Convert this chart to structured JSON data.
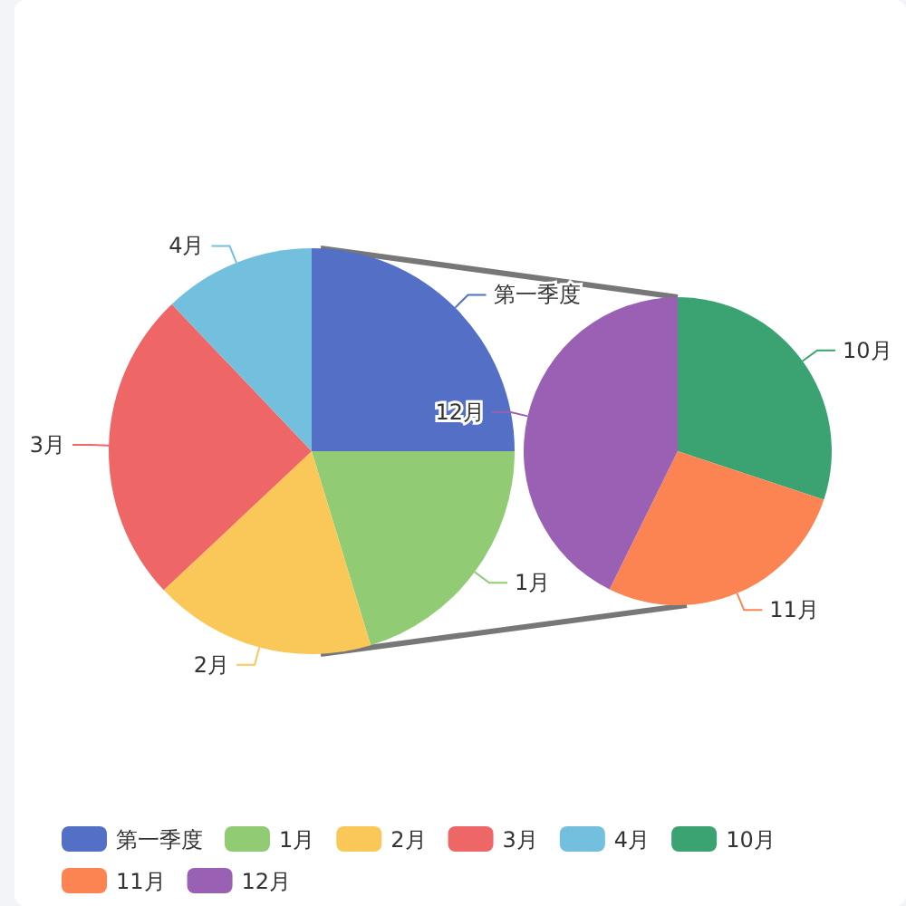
{
  "chart_data": [
    {
      "type": "pie",
      "categories": [
        "第一季度",
        "1月",
        "2月",
        "3月",
        "4月"
      ],
      "values": [
        25,
        20.3,
        17.7,
        24.9,
        12.1
      ],
      "colors": [
        "#5470c6",
        "#91cc75",
        "#fac858",
        "#ee6666",
        "#73c0de"
      ],
      "legend": "bottom"
    },
    {
      "type": "pie",
      "categories": [
        "10月",
        "11月",
        "12月"
      ],
      "values": [
        30.1,
        27.2,
        42.7
      ],
      "colors": [
        "#3ba272",
        "#fc8452",
        "#9a60b4"
      ],
      "legend": "bottom"
    }
  ]
}
